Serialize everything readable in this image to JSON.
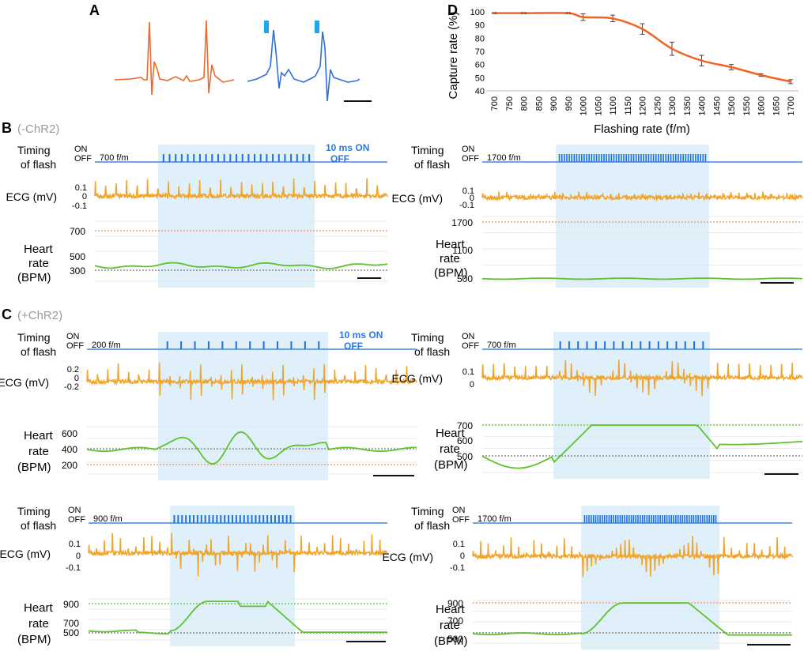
{
  "colors": {
    "orange_trace": "#f0a42a",
    "ecg_orange_red": "#ec6a2c",
    "ecg_blue": "#2f6fe0",
    "flash_blue": "#1e72e0",
    "shade": "#dff0fa",
    "green": "#5fc22e",
    "dot_red": "#f2a07a",
    "dot_green": "#6cd04b",
    "dot_gray": "#8a8a8a",
    "label_blue": "#2b78e4",
    "gray_text": "#9a9a9a",
    "capture_line": "#f26322"
  },
  "panel_letters": {
    "a": "A",
    "b": "B",
    "c": "C",
    "d": "D"
  },
  "panel_b_note": "(-ChR2)",
  "panel_c_note": "(+ChR2)",
  "labels": {
    "timing1": "Timing",
    "timing2": "of flash",
    "on": "ON",
    "off": "OFF",
    "ecg": "ECG (mV)",
    "hr1": "Heart",
    "hr2": "rate",
    "hr3": "(BPM)",
    "pulse_on": "10 ms ON",
    "pulse_off": "OFF"
  },
  "traces": {
    "b_left": {
      "rate": "700 f/m",
      "ecg_ticks": [
        "0.1",
        "0",
        "-0.1"
      ],
      "hr_ticks": [
        "700",
        "500",
        "300"
      ]
    },
    "b_right": {
      "rate": "1700 f/m",
      "ecg_ticks": [
        "0.1",
        "0",
        "-0.1"
      ],
      "hr_ticks": [
        "1700",
        "1100",
        "500"
      ]
    },
    "c1_left": {
      "rate": "200 f/m",
      "ecg_ticks": [
        "0.2",
        "0",
        "-0.2"
      ],
      "hr_ticks": [
        "600",
        "400",
        "200"
      ]
    },
    "c1_right": {
      "rate": "700 f/m",
      "ecg_ticks": [
        "0.1",
        "0"
      ],
      "hr_ticks": [
        "700",
        "600",
        "500"
      ]
    },
    "c2_left": {
      "rate": "900 f/m",
      "ecg_ticks": [
        "0.1",
        "0",
        "-0.1"
      ],
      "hr_ticks": [
        "900",
        "700",
        "500"
      ]
    },
    "c2_right": {
      "rate": "1700 f/m",
      "ecg_ticks": [
        "0.1",
        "0",
        "-0.1"
      ],
      "hr_ticks": [
        "900",
        "700",
        "500"
      ]
    }
  },
  "chart_data": {
    "type": "line",
    "title": "",
    "xlabel": "Flashing rate (f/m)",
    "ylabel": "Capture rate (%)",
    "x": [
      700,
      750,
      800,
      850,
      900,
      950,
      1000,
      1050,
      1100,
      1150,
      1200,
      1250,
      1300,
      1350,
      1400,
      1450,
      1500,
      1550,
      1600,
      1650,
      1700
    ],
    "x_tick_labels": [
      "700",
      "750",
      "800",
      "850",
      "900",
      "950",
      "1000",
      "1050",
      "1100",
      "1150",
      "1200",
      "1250",
      "1300",
      "1350",
      "1400",
      "1450",
      "1500",
      "1550",
      "1600",
      "1650",
      "1700"
    ],
    "y_tick_labels": [
      "100",
      "90",
      "80",
      "70",
      "60",
      "50",
      "40"
    ],
    "ylim": [
      40,
      100
    ],
    "xlim": [
      700,
      1700
    ],
    "series": [
      {
        "name": "Capture rate",
        "points": [
          [
            700,
            99
          ],
          [
            800,
            99
          ],
          [
            950,
            99
          ],
          [
            1000,
            96
          ],
          [
            1100,
            95
          ],
          [
            1200,
            87
          ],
          [
            1300,
            72
          ],
          [
            1400,
            63
          ],
          [
            1500,
            58
          ],
          [
            1600,
            52
          ],
          [
            1700,
            47
          ]
        ],
        "errors": [
          0.5,
          0.5,
          0.5,
          2.5,
          2.5,
          4,
          5,
          4,
          2,
          1,
          1.5
        ]
      }
    ]
  }
}
